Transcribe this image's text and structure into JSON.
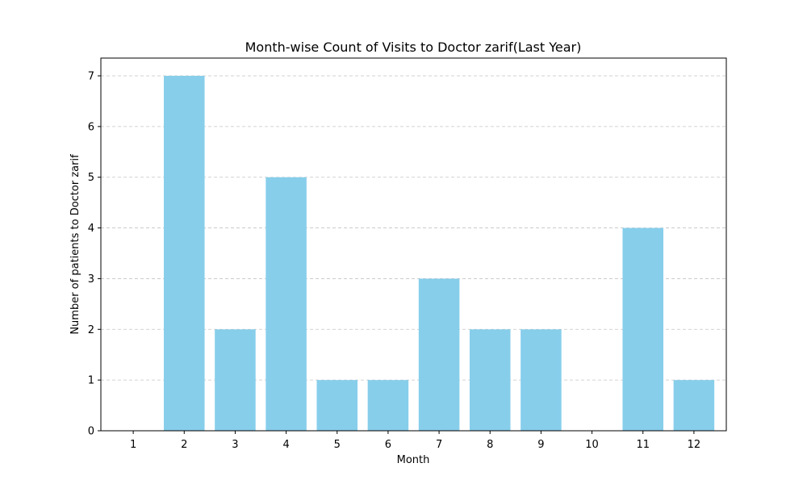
{
  "chart_data": {
    "type": "bar",
    "title": "Month-wise Count of Visits to Doctor zarif(Last Year)",
    "xlabel": "Month",
    "ylabel": "Number of patients to Doctor zarif",
    "categories": [
      "1",
      "2",
      "3",
      "4",
      "5",
      "6",
      "7",
      "8",
      "9",
      "10",
      "11",
      "12"
    ],
    "values": [
      0,
      7,
      2,
      5,
      1,
      1,
      3,
      2,
      2,
      0,
      4,
      1
    ],
    "ylim": [
      0,
      7.35
    ],
    "yticks": [
      0,
      1,
      2,
      3,
      4,
      5,
      6,
      7
    ],
    "grid": "y-dashed",
    "colors": {
      "bar": "#87CEEB",
      "grid": "#c4c4c4",
      "axis": "#000000"
    }
  }
}
